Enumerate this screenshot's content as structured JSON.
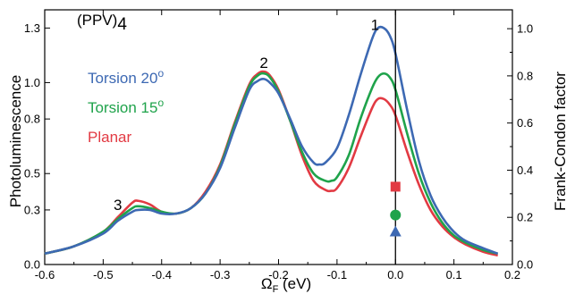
{
  "chart_data": {
    "type": "line",
    "title": "",
    "annotation_molecule": "(PPV)",
    "annotation_molecule_sub": "4",
    "xlabel_main": "Ω",
    "xlabel_sub": "F",
    "xlabel_unit": " (eV)",
    "ylabel_left": "Photoluminescence",
    "ylabel_right": "Frank-Condon factor",
    "xlim": [
      -0.6,
      0.2
    ],
    "ylim_left": [
      0.0,
      1.4
    ],
    "ylim_right": [
      0.0,
      1.08
    ],
    "x_ticks": [
      -0.6,
      -0.5,
      -0.4,
      -0.3,
      -0.2,
      -0.1,
      0.0,
      0.1,
      0.2
    ],
    "x_tick_labels": [
      "-0.6",
      "-0.5",
      "-0.4",
      "-0.3",
      "-0.2",
      "-0.1",
      "0.0",
      "0.1",
      "0.2"
    ],
    "y_left_ticks": [
      0.0,
      0.3,
      0.5,
      0.8,
      1.0,
      1.3
    ],
    "y_left_tick_labels": [
      "0.0",
      "0.3",
      "0.5",
      "0.8",
      "1.0",
      "1.3"
    ],
    "y_right_ticks": [
      0.0,
      0.2,
      0.4,
      0.6,
      0.8,
      1.0
    ],
    "y_right_tick_labels": [
      "0.0",
      "0.2",
      "0.4",
      "0.6",
      "0.8",
      "1.0"
    ],
    "vertical_line_x": 0.0,
    "peak_labels": [
      {
        "text": "1",
        "x": -0.035,
        "y": 1.29
      },
      {
        "text": "2",
        "x": -0.225,
        "y": 1.08
      },
      {
        "text": "3",
        "x": -0.475,
        "y": 0.3
      }
    ],
    "series": [
      {
        "name": "Planar",
        "color": "#e23a43",
        "x": [
          -0.6,
          -0.55,
          -0.5,
          -0.475,
          -0.45,
          -0.44,
          -0.42,
          -0.4,
          -0.375,
          -0.35,
          -0.325,
          -0.3,
          -0.275,
          -0.25,
          -0.235,
          -0.225,
          -0.215,
          -0.2,
          -0.18,
          -0.16,
          -0.14,
          -0.12,
          -0.11,
          -0.1,
          -0.08,
          -0.06,
          -0.04,
          -0.03,
          -0.02,
          -0.01,
          0.0,
          0.02,
          0.04,
          0.06,
          0.08,
          0.1,
          0.12,
          0.15,
          0.175
        ],
        "y": [
          0.06,
          0.1,
          0.18,
          0.26,
          0.34,
          0.35,
          0.33,
          0.29,
          0.28,
          0.31,
          0.4,
          0.55,
          0.78,
          0.99,
          1.05,
          1.06,
          1.04,
          0.96,
          0.79,
          0.6,
          0.46,
          0.41,
          0.405,
          0.42,
          0.53,
          0.7,
          0.86,
          0.91,
          0.91,
          0.88,
          0.82,
          0.62,
          0.44,
          0.3,
          0.21,
          0.15,
          0.11,
          0.07,
          0.05
        ]
      },
      {
        "name": "Torsion 15°",
        "color": "#1fa34b",
        "x": [
          -0.6,
          -0.55,
          -0.5,
          -0.475,
          -0.45,
          -0.44,
          -0.42,
          -0.4,
          -0.375,
          -0.35,
          -0.325,
          -0.3,
          -0.275,
          -0.25,
          -0.235,
          -0.225,
          -0.215,
          -0.2,
          -0.18,
          -0.16,
          -0.14,
          -0.12,
          -0.11,
          -0.1,
          -0.08,
          -0.06,
          -0.04,
          -0.03,
          -0.02,
          -0.01,
          0.0,
          0.02,
          0.04,
          0.06,
          0.08,
          0.1,
          0.12,
          0.15,
          0.175
        ],
        "y": [
          0.06,
          0.1,
          0.18,
          0.25,
          0.31,
          0.32,
          0.31,
          0.29,
          0.28,
          0.31,
          0.39,
          0.54,
          0.77,
          0.98,
          1.04,
          1.05,
          1.03,
          0.95,
          0.79,
          0.62,
          0.5,
          0.46,
          0.46,
          0.48,
          0.6,
          0.8,
          0.97,
          1.03,
          1.05,
          1.03,
          0.96,
          0.72,
          0.5,
          0.34,
          0.23,
          0.16,
          0.12,
          0.08,
          0.06
        ]
      },
      {
        "name": "Torsion 20°",
        "color": "#3d69b3",
        "x": [
          -0.6,
          -0.55,
          -0.5,
          -0.475,
          -0.45,
          -0.44,
          -0.42,
          -0.4,
          -0.375,
          -0.35,
          -0.325,
          -0.3,
          -0.275,
          -0.25,
          -0.235,
          -0.225,
          -0.215,
          -0.2,
          -0.18,
          -0.16,
          -0.14,
          -0.13,
          -0.12,
          -0.1,
          -0.08,
          -0.06,
          -0.04,
          -0.03,
          -0.02,
          -0.01,
          0.0,
          0.02,
          0.04,
          0.06,
          0.08,
          0.1,
          0.12,
          0.15,
          0.175
        ],
        "y": [
          0.06,
          0.1,
          0.17,
          0.24,
          0.29,
          0.3,
          0.3,
          0.28,
          0.28,
          0.31,
          0.39,
          0.53,
          0.75,
          0.96,
          1.01,
          1.02,
          1.0,
          0.94,
          0.8,
          0.65,
          0.56,
          0.55,
          0.56,
          0.64,
          0.82,
          1.04,
          1.24,
          1.3,
          1.3,
          1.26,
          1.16,
          0.85,
          0.57,
          0.38,
          0.26,
          0.18,
          0.13,
          0.09,
          0.06
        ]
      }
    ],
    "legend": [
      {
        "label": "Torsion 20",
        "sup": "o",
        "color": "#3d69b3"
      },
      {
        "label": "Torsion 15",
        "sup": "o",
        "color": "#1fa34b"
      },
      {
        "label": "Planar",
        "sup": "",
        "color": "#e23a43"
      }
    ],
    "frank_condon_markers": [
      {
        "series": "Planar",
        "shape": "square",
        "x": 0.0,
        "y": 0.33,
        "color": "#e23a43"
      },
      {
        "series": "Torsion 15°",
        "shape": "circle",
        "x": 0.0,
        "y": 0.21,
        "color": "#1fa34b"
      },
      {
        "series": "Torsion 20°",
        "shape": "triangle",
        "x": 0.0,
        "y": 0.14,
        "color": "#3d69b3"
      }
    ]
  }
}
